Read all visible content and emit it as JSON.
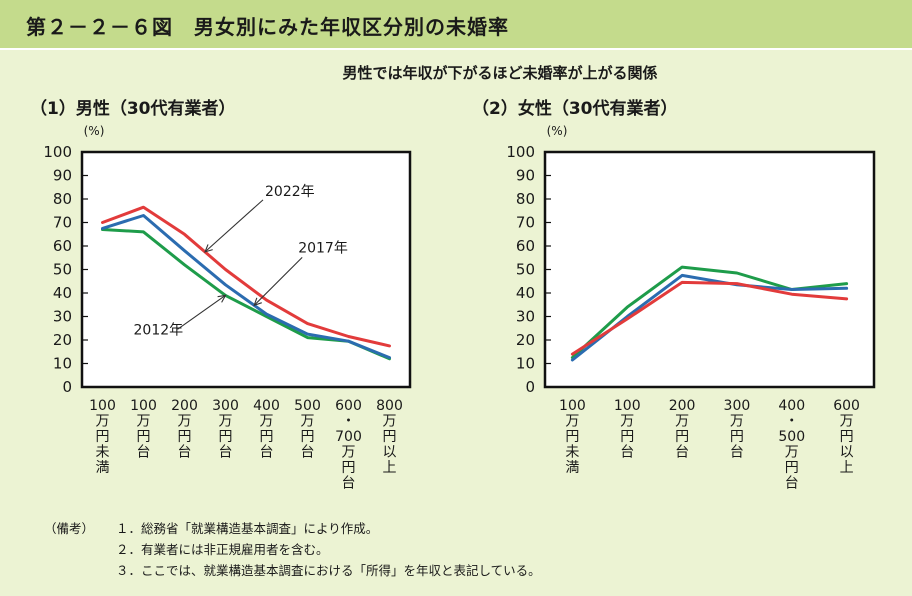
{
  "header": {
    "title": "第２－２－６図　男女別にみた年収区分別の未婚率"
  },
  "subtitle": "男性では年収が下がるほど未婚率が上がる関係",
  "chart_data": [
    {
      "type": "line",
      "title": "（1）男性（30代有業者）",
      "ylabel": "(%)",
      "ylim": [
        0,
        100
      ],
      "yticks": [
        0,
        10,
        20,
        30,
        40,
        50,
        60,
        70,
        80,
        90,
        100
      ],
      "categories": [
        "100万円未満",
        "100万円台",
        "200万円台",
        "300万円台",
        "400万円台",
        "500万円台",
        "600・700万円台",
        "800万円以上"
      ],
      "category_label_chars": [
        [
          "100",
          "万",
          "円",
          "未",
          "満"
        ],
        [
          "100",
          "万",
          "円",
          "台"
        ],
        [
          "200",
          "万",
          "円",
          "台"
        ],
        [
          "300",
          "万",
          "円",
          "台"
        ],
        [
          "400",
          "万",
          "円",
          "台"
        ],
        [
          "500",
          "万",
          "円",
          "台"
        ],
        [
          "600",
          "・",
          "700",
          "万",
          "円",
          "台"
        ],
        [
          "800",
          "万",
          "円",
          "以",
          "上"
        ]
      ],
      "grid": false,
      "series": [
        {
          "name": "2022年",
          "color": "#e23b3b",
          "values": [
            70,
            76.5,
            65,
            50,
            37,
            27,
            21.5,
            17.5
          ]
        },
        {
          "name": "2017年",
          "color": "#2b6cb0",
          "values": [
            67.5,
            73,
            58,
            43.5,
            31,
            22.5,
            19.5,
            12.5
          ]
        },
        {
          "name": "2012年",
          "color": "#1e9c4a",
          "values": [
            67,
            66,
            52,
            39,
            30,
            21,
            19.5,
            12
          ]
        }
      ],
      "annotations": [
        {
          "text": "2022年",
          "series": "2022年",
          "at_category": 2.5
        },
        {
          "text": "2017年",
          "series": "2017年",
          "at_category": 3.7
        },
        {
          "text": "2012年",
          "series": "2012年",
          "at_category": 3.0
        }
      ]
    },
    {
      "type": "line",
      "title": "（2）女性（30代有業者）",
      "ylabel": "(%)",
      "ylim": [
        0,
        100
      ],
      "yticks": [
        0,
        10,
        20,
        30,
        40,
        50,
        60,
        70,
        80,
        90,
        100
      ],
      "categories": [
        "100万円未満",
        "100万円台",
        "200万円台",
        "300万円台",
        "400・500万円台",
        "600万円以上"
      ],
      "category_label_chars": [
        [
          "100",
          "万",
          "円",
          "未",
          "満"
        ],
        [
          "100",
          "万",
          "円",
          "台"
        ],
        [
          "200",
          "万",
          "円",
          "台"
        ],
        [
          "300",
          "万",
          "円",
          "台"
        ],
        [
          "400",
          "・",
          "500",
          "万",
          "円",
          "台"
        ],
        [
          "600",
          "万",
          "円",
          "以",
          "上"
        ]
      ],
      "grid": false,
      "series": [
        {
          "name": "2022年",
          "color": "#e23b3b",
          "values": [
            14,
            29,
            44.5,
            44,
            39.5,
            37.5
          ]
        },
        {
          "name": "2017年",
          "color": "#2b6cb0",
          "values": [
            11.5,
            30,
            47.5,
            43.5,
            41.5,
            42
          ]
        },
        {
          "name": "2012年",
          "color": "#1e9c4a",
          "values": [
            12.5,
            34,
            51,
            48.5,
            41.5,
            44
          ]
        }
      ]
    }
  ],
  "notes": {
    "prefix": "（備考）",
    "items": [
      "１．総務省「就業構造基本調査」により作成。",
      "２．有業者には非正規雇用者を含む。",
      "３．ここでは、就業構造基本調査における「所得」を年収と表記している。"
    ]
  }
}
